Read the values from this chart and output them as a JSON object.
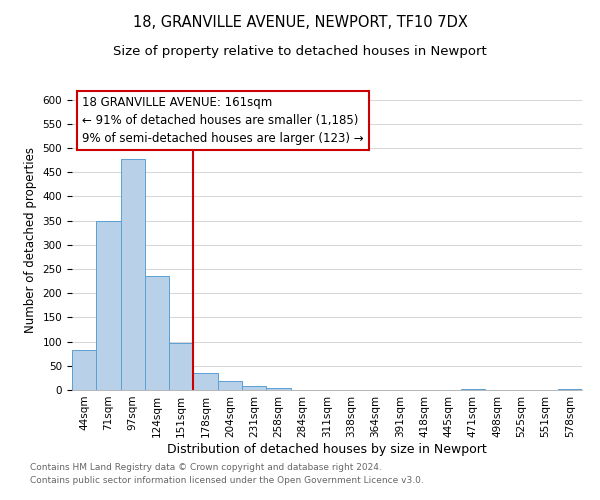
{
  "title": "18, GRANVILLE AVENUE, NEWPORT, TF10 7DX",
  "subtitle": "Size of property relative to detached houses in Newport",
  "xlabel": "Distribution of detached houses by size in Newport",
  "ylabel": "Number of detached properties",
  "bin_labels": [
    "44sqm",
    "71sqm",
    "97sqm",
    "124sqm",
    "151sqm",
    "178sqm",
    "204sqm",
    "231sqm",
    "258sqm",
    "284sqm",
    "311sqm",
    "338sqm",
    "364sqm",
    "391sqm",
    "418sqm",
    "445sqm",
    "471sqm",
    "498sqm",
    "525sqm",
    "551sqm",
    "578sqm"
  ],
  "bar_values": [
    83,
    350,
    478,
    235,
    97,
    35,
    18,
    8,
    5,
    0,
    0,
    0,
    0,
    0,
    0,
    0,
    3,
    0,
    0,
    0,
    3
  ],
  "bar_color": "#b8d0e8",
  "bar_edge_color": "#5a9fd4",
  "ylim": [
    0,
    620
  ],
  "yticks": [
    0,
    50,
    100,
    150,
    200,
    250,
    300,
    350,
    400,
    450,
    500,
    550,
    600
  ],
  "property_line_x": 4.5,
  "property_line_color": "#cc0000",
  "annotation_title": "18 GRANVILLE AVENUE: 161sqm",
  "annotation_line1": "← 91% of detached houses are smaller (1,185)",
  "annotation_line2": "9% of semi-detached houses are larger (123) →",
  "annotation_box_color": "#cc0000",
  "footnote1": "Contains HM Land Registry data © Crown copyright and database right 2024.",
  "footnote2": "Contains public sector information licensed under the Open Government Licence v3.0.",
  "title_fontsize": 10.5,
  "subtitle_fontsize": 9.5,
  "xlabel_fontsize": 9,
  "ylabel_fontsize": 8.5,
  "tick_fontsize": 7.5,
  "annotation_title_fontsize": 9,
  "annotation_body_fontsize": 8.5,
  "footnote_fontsize": 6.5
}
